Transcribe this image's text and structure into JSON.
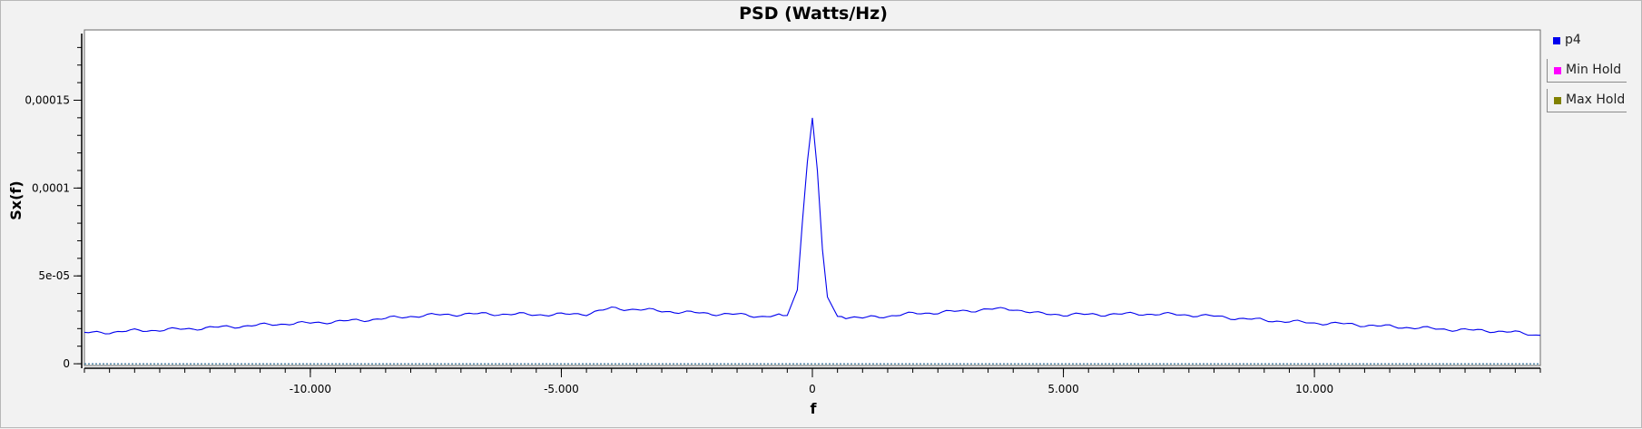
{
  "chart_data": {
    "type": "line",
    "title": "PSD (Watts/Hz)",
    "xlabel": "f",
    "ylabel": "Sx(f)",
    "xlim": [
      -14.5,
      14.5
    ],
    "ylim": [
      -1e-06,
      0.00019
    ],
    "xticks": [
      {
        "value": -10,
        "label": "-10.000"
      },
      {
        "value": -5,
        "label": "-5.000"
      },
      {
        "value": 0,
        "label": "0"
      },
      {
        "value": 5,
        "label": "5.000"
      },
      {
        "value": 10,
        "label": "10.000"
      }
    ],
    "yticks": [
      {
        "value": 0,
        "label": "0"
      },
      {
        "value": 5e-05,
        "label": "5e-05"
      },
      {
        "value": 0.0001,
        "label": "0,0001"
      },
      {
        "value": 0.00015,
        "label": "0,00015"
      }
    ],
    "grid": false,
    "legend_position": "right",
    "series": [
      {
        "name": "p4",
        "color": "#0000ee",
        "x": [
          -14.5,
          -14,
          -13.5,
          -13,
          -12.5,
          -12,
          -11.5,
          -11,
          -10.5,
          -10,
          -9.5,
          -9,
          -8.5,
          -8,
          -7.5,
          -7,
          -6.5,
          -6,
          -5.5,
          -5,
          -4.5,
          -4,
          -3.5,
          -3,
          -2.5,
          -2,
          -1.5,
          -1,
          -0.5,
          -0.3,
          -0.2,
          -0.1,
          0,
          0.1,
          0.2,
          0.3,
          0.5,
          1,
          1.5,
          2,
          2.5,
          3,
          3.5,
          4,
          4.5,
          5,
          5.5,
          6,
          6.5,
          7,
          7.5,
          8,
          8.5,
          9,
          9.5,
          10,
          10.5,
          11,
          11.5,
          12,
          12.5,
          13,
          13.5,
          14,
          14.5
        ],
        "y": [
          1.75e-05,
          1.8e-05,
          1.88e-05,
          1.92e-05,
          1.98e-05,
          2.05e-05,
          2.12e-05,
          2.2e-05,
          2.28e-05,
          2.32e-05,
          2.4e-05,
          2.48e-05,
          2.58e-05,
          2.7e-05,
          2.78e-05,
          2.82e-05,
          2.84e-05,
          2.82e-05,
          2.8e-05,
          2.8e-05,
          2.85e-05,
          3.15e-05,
          3.1e-05,
          3e-05,
          2.92e-05,
          2.85e-05,
          2.8e-05,
          2.7e-05,
          2.75e-05,
          4.2e-05,
          8e-05,
          0.000115,
          0.00014,
          0.00011,
          6.5e-05,
          3.8e-05,
          2.7e-05,
          2.6e-05,
          2.72e-05,
          2.85e-05,
          2.92e-05,
          3e-05,
          3.1e-05,
          3.12e-05,
          2.85e-05,
          2.8e-05,
          2.8e-05,
          2.82e-05,
          2.84e-05,
          2.82e-05,
          2.78e-05,
          2.7e-05,
          2.58e-05,
          2.48e-05,
          2.4e-05,
          2.32e-05,
          2.28e-05,
          2.2e-05,
          2.12e-05,
          2.05e-05,
          1.98e-05,
          1.92e-05,
          1.88e-05,
          1.78e-05,
          1.62e-05
        ]
      },
      {
        "name": "Min Hold",
        "color": "#ff00ff",
        "x": [
          -14.5,
          14.5
        ],
        "y": [
          0,
          0
        ]
      },
      {
        "name": "Max Hold",
        "color": "#808000",
        "x": [
          -14.5,
          14.5
        ],
        "y": [
          0,
          0
        ]
      }
    ]
  }
}
